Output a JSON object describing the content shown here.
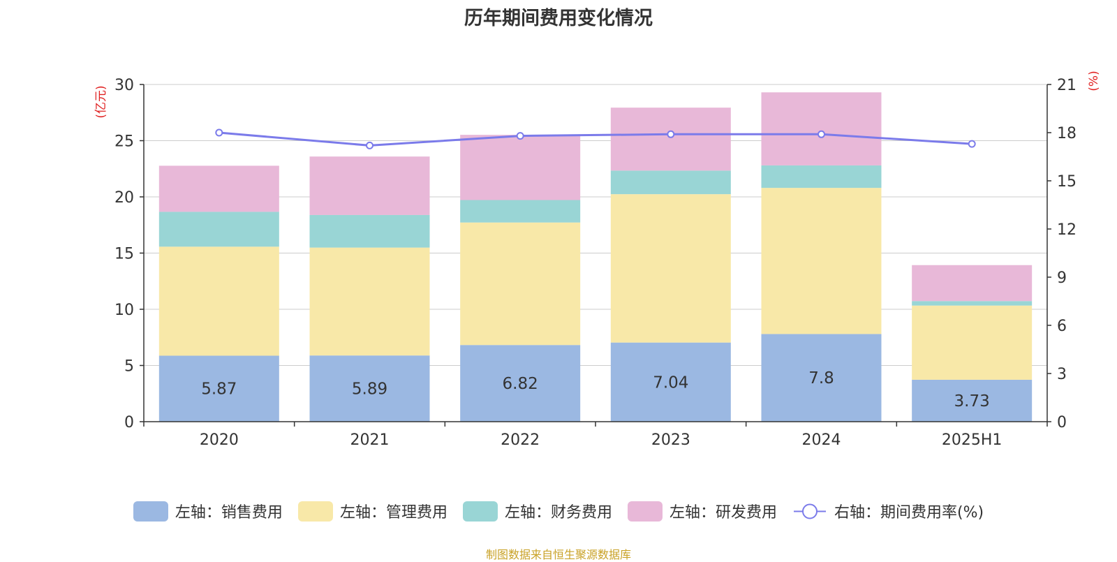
{
  "chart_data": {
    "type": "bar",
    "stacked": true,
    "title": "历年期间费用变化情况",
    "categories": [
      "2020",
      "2021",
      "2022",
      "2023",
      "2024",
      "2025H1"
    ],
    "y_left": {
      "label": "(亿元)",
      "ylim": [
        0,
        30
      ],
      "ticks": [
        0,
        5,
        10,
        15,
        20,
        25,
        30
      ]
    },
    "y_right": {
      "label": "(%)",
      "ylim": [
        0,
        21
      ],
      "ticks": [
        0,
        3,
        6,
        9,
        12,
        15,
        18,
        21
      ]
    },
    "grid": true,
    "legend_position": "bottom",
    "series": [
      {
        "name": "左轴：销售费用",
        "type": "bar",
        "axis": "left",
        "color": "#9bb8e2",
        "values": [
          5.87,
          5.89,
          6.82,
          7.04,
          7.8,
          3.73
        ],
        "show_labels": true
      },
      {
        "name": "左轴：管理费用",
        "type": "bar",
        "axis": "left",
        "color": "#f8e8a8",
        "values": [
          9.7,
          9.6,
          10.9,
          13.2,
          13.0,
          6.6
        ],
        "show_labels": false
      },
      {
        "name": "左轴：财务费用",
        "type": "bar",
        "axis": "left",
        "color": "#99d5d5",
        "values": [
          3.1,
          2.9,
          2.0,
          2.1,
          2.0,
          0.4
        ],
        "show_labels": false
      },
      {
        "name": "左轴：研发费用",
        "type": "bar",
        "axis": "left",
        "color": "#e8b8d8",
        "values": [
          4.1,
          5.2,
          5.8,
          5.6,
          6.5,
          3.2
        ],
        "show_labels": false
      },
      {
        "name": "右轴：期间费用率(%)",
        "type": "line",
        "axis": "right",
        "color": "#7b7bea",
        "values": [
          18.0,
          17.2,
          17.8,
          17.9,
          17.9,
          17.3
        ]
      }
    ]
  },
  "source_note": "制图数据来自恒生聚源数据库"
}
